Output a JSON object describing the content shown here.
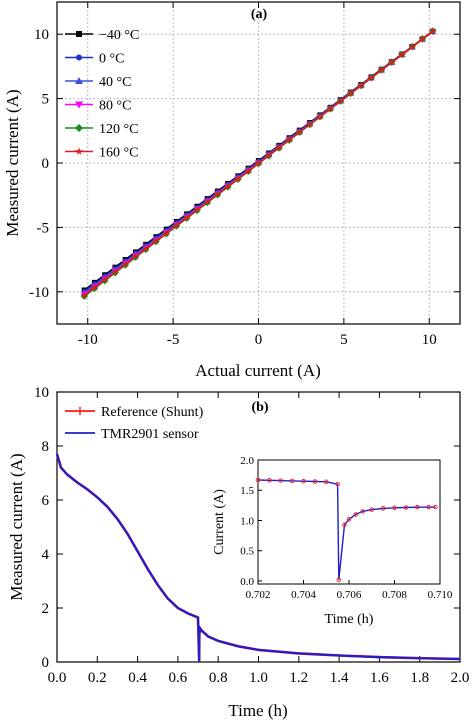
{
  "chart_data": [
    {
      "type": "line",
      "panel_label": "(a)",
      "xlabel": "Actual current (A)",
      "ylabel": "Measured current (A)",
      "xlim": [
        -11.8,
        11.8
      ],
      "ylim": [
        -12.5,
        12.5
      ],
      "xticks": [
        -10,
        -5,
        0,
        5,
        10
      ],
      "yticks": [
        -10,
        -5,
        0,
        5,
        10
      ],
      "grid": true,
      "legend_position": "top-left",
      "x": [
        -10.2,
        -9.6,
        -9.0,
        -8.4,
        -7.8,
        -7.2,
        -6.6,
        -6.0,
        -5.4,
        -4.8,
        -4.2,
        -3.6,
        -3.0,
        -2.4,
        -1.8,
        -1.2,
        -0.6,
        0,
        0.6,
        1.2,
        1.8,
        2.4,
        3.0,
        3.6,
        4.2,
        4.8,
        5.4,
        6.0,
        6.6,
        7.2,
        7.8,
        8.4,
        9.0,
        9.6,
        10.2
      ],
      "series": [
        {
          "name": "−40 °C",
          "color": "#000000",
          "marker": "square",
          "gain": 0.985,
          "offset": 0.18
        },
        {
          "name": "0 °C",
          "color": "#1f2ec8",
          "marker": "circle",
          "gain": 0.99,
          "offset": 0.12
        },
        {
          "name": "40 °C",
          "color": "#3a4fd8",
          "marker": "triangle-up",
          "gain": 0.995,
          "offset": 0.06
        },
        {
          "name": "80 °C",
          "color": "#ff00ff",
          "marker": "triangle-down",
          "gain": 1.0,
          "offset": 0.0
        },
        {
          "name": "120 °C",
          "color": "#1a8c1a",
          "marker": "diamond",
          "gain": 1.01,
          "offset": -0.05
        },
        {
          "name": "160 °C",
          "color": "#dd1c1c",
          "marker": "star",
          "gain": 1.005,
          "offset": -0.03
        }
      ]
    },
    {
      "type": "line",
      "panel_label": "(b)",
      "xlabel": "Time (h)",
      "ylabel": "Measured current (A)",
      "xlim": [
        0,
        2.0
      ],
      "ylim": [
        0,
        10
      ],
      "xticks": [
        0.0,
        0.2,
        0.4,
        0.6,
        0.8,
        1.0,
        1.2,
        1.4,
        1.6,
        1.8,
        2.0
      ],
      "yticks": [
        0,
        2,
        4,
        6,
        8,
        10
      ],
      "legend_position": "top-left",
      "series": [
        {
          "name": "Reference (Shunt)",
          "color": "#ff1a1a"
        },
        {
          "name": "TMR2901 sensor",
          "color": "#1f1fcc"
        }
      ],
      "x": [
        0,
        0.02,
        0.05,
        0.1,
        0.15,
        0.2,
        0.25,
        0.3,
        0.35,
        0.4,
        0.45,
        0.5,
        0.55,
        0.6,
        0.65,
        0.7,
        0.7055,
        0.706,
        0.71,
        0.72,
        0.75,
        0.8,
        0.9,
        1.0,
        1.2,
        1.4,
        1.6,
        1.8,
        2.0
      ],
      "y": [
        7.7,
        7.2,
        6.95,
        6.65,
        6.4,
        6.1,
        5.75,
        5.3,
        4.75,
        4.1,
        3.45,
        2.85,
        2.35,
        2.0,
        1.8,
        1.65,
        0.0,
        1.0,
        1.25,
        1.15,
        0.95,
        0.78,
        0.58,
        0.45,
        0.32,
        0.24,
        0.18,
        0.14,
        0.11
      ],
      "inset": {
        "xlabel": "Time (h)",
        "ylabel": "Current (A)",
        "xlim": [
          0.702,
          0.71
        ],
        "ylim": [
          -0.05,
          2.0
        ],
        "xticks": [
          0.702,
          0.704,
          0.706,
          0.708,
          0.71
        ],
        "yticks": [
          0.0,
          0.5,
          1.0,
          1.5,
          2.0
        ],
        "x": [
          0.702,
          0.7025,
          0.703,
          0.7035,
          0.704,
          0.7045,
          0.705,
          0.7055,
          0.70555,
          0.7058,
          0.706,
          0.7063,
          0.7066,
          0.707,
          0.7075,
          0.708,
          0.7085,
          0.709,
          0.7095,
          0.7098
        ],
        "y": [
          1.67,
          1.665,
          1.66,
          1.655,
          1.65,
          1.645,
          1.64,
          1.6,
          0.02,
          0.93,
          1.02,
          1.1,
          1.15,
          1.18,
          1.2,
          1.21,
          1.215,
          1.22,
          1.22,
          1.22
        ]
      }
    }
  ]
}
